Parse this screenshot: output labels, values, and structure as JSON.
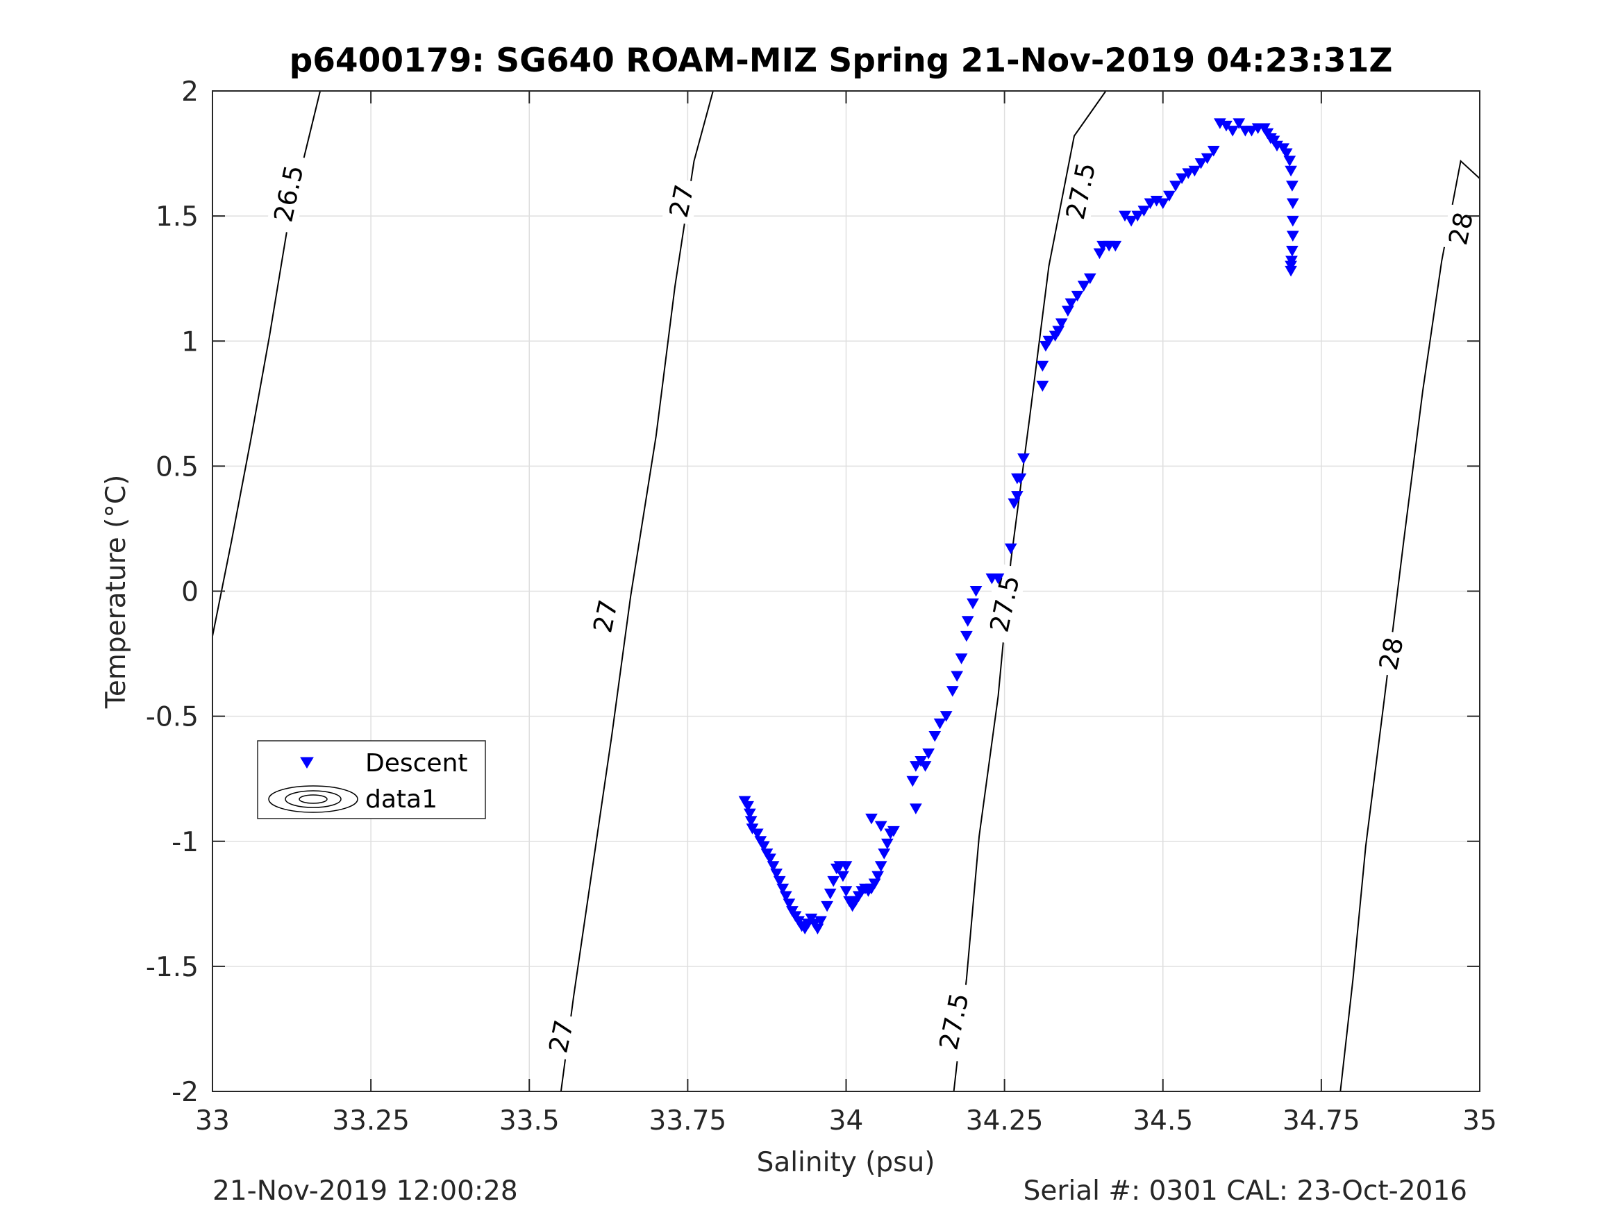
{
  "chart_data": {
    "type": "scatter",
    "title": "p6400179: SG640 ROAM-MIZ Spring 21-Nov-2019 04:23:31Z",
    "xlabel": "Salinity (psu)",
    "ylabel": "Temperature (°C)",
    "xlim": [
      33,
      35
    ],
    "ylim": [
      -2,
      2
    ],
    "xticks": [
      33,
      33.25,
      33.5,
      33.75,
      34,
      34.25,
      34.5,
      34.75,
      35
    ],
    "xtick_labels": [
      "33",
      "33.25",
      "33.5",
      "33.75",
      "34",
      "34.25",
      "34.5",
      "34.75",
      "35"
    ],
    "yticks": [
      -2,
      -1.5,
      -1,
      -0.5,
      0,
      0.5,
      1,
      1.5,
      2
    ],
    "ytick_labels": [
      "-2",
      "-1.5",
      "-1",
      "-0.5",
      "0",
      "0.5",
      "1",
      "1.5",
      "2"
    ],
    "grid": true,
    "legend_position": "middle-left",
    "legend": [
      {
        "label": "Descent",
        "marker": "triangle-down",
        "color": "#0000ff"
      },
      {
        "label": "data1",
        "marker": "contour",
        "color": "#000000"
      }
    ],
    "series": [
      {
        "name": "Descent",
        "color": "#0000ff",
        "marker": "triangle-down",
        "points": [
          [
            33.84,
            -0.84
          ],
          [
            33.845,
            -0.86
          ],
          [
            33.848,
            -0.89
          ],
          [
            33.85,
            -0.92
          ],
          [
            33.852,
            -0.95
          ],
          [
            33.86,
            -0.97
          ],
          [
            33.865,
            -1.0
          ],
          [
            33.87,
            -1.02
          ],
          [
            33.875,
            -1.05
          ],
          [
            33.88,
            -1.07
          ],
          [
            33.885,
            -1.1
          ],
          [
            33.89,
            -1.13
          ],
          [
            33.895,
            -1.16
          ],
          [
            33.9,
            -1.19
          ],
          [
            33.905,
            -1.22
          ],
          [
            33.91,
            -1.25
          ],
          [
            33.915,
            -1.28
          ],
          [
            33.92,
            -1.3
          ],
          [
            33.925,
            -1.32
          ],
          [
            33.93,
            -1.34
          ],
          [
            33.935,
            -1.35
          ],
          [
            33.94,
            -1.33
          ],
          [
            33.945,
            -1.31
          ],
          [
            33.95,
            -1.33
          ],
          [
            33.955,
            -1.35
          ],
          [
            33.96,
            -1.32
          ],
          [
            33.97,
            -1.26
          ],
          [
            33.975,
            -1.21
          ],
          [
            33.98,
            -1.16
          ],
          [
            33.985,
            -1.11
          ],
          [
            33.99,
            -1.1
          ],
          [
            33.995,
            -1.14
          ],
          [
            34.0,
            -1.1
          ],
          [
            34.0,
            -1.2
          ],
          [
            34.005,
            -1.24
          ],
          [
            34.01,
            -1.26
          ],
          [
            34.015,
            -1.24
          ],
          [
            34.02,
            -1.22
          ],
          [
            34.025,
            -1.2
          ],
          [
            34.03,
            -1.19
          ],
          [
            34.035,
            -1.2
          ],
          [
            34.04,
            -1.19
          ],
          [
            34.045,
            -1.17
          ],
          [
            34.05,
            -1.14
          ],
          [
            34.055,
            -1.1
          ],
          [
            34.06,
            -1.05
          ],
          [
            34.065,
            -1.01
          ],
          [
            34.07,
            -0.97
          ],
          [
            34.075,
            -0.96
          ],
          [
            34.055,
            -0.94
          ],
          [
            34.04,
            -0.91
          ],
          [
            34.11,
            -0.87
          ],
          [
            34.105,
            -0.76
          ],
          [
            34.11,
            -0.7
          ],
          [
            34.118,
            -0.68
          ],
          [
            34.125,
            -0.7
          ],
          [
            34.13,
            -0.65
          ],
          [
            34.14,
            -0.58
          ],
          [
            34.148,
            -0.53
          ],
          [
            34.158,
            -0.5
          ],
          [
            34.168,
            -0.4
          ],
          [
            34.175,
            -0.34
          ],
          [
            34.182,
            -0.27
          ],
          [
            34.19,
            -0.18
          ],
          [
            34.192,
            -0.12
          ],
          [
            34.2,
            -0.05
          ],
          [
            34.205,
            0.0
          ],
          [
            34.23,
            0.05
          ],
          [
            34.24,
            0.05
          ],
          [
            34.26,
            0.17
          ],
          [
            34.265,
            0.35
          ],
          [
            34.27,
            0.38
          ],
          [
            34.27,
            0.45
          ],
          [
            34.275,
            0.45
          ],
          [
            34.28,
            0.53
          ],
          [
            34.31,
            0.82
          ],
          [
            34.31,
            0.9
          ],
          [
            34.315,
            0.98
          ],
          [
            34.32,
            1.0
          ],
          [
            34.33,
            1.02
          ],
          [
            34.335,
            1.04
          ],
          [
            34.34,
            1.07
          ],
          [
            34.35,
            1.12
          ],
          [
            34.355,
            1.15
          ],
          [
            34.365,
            1.18
          ],
          [
            34.375,
            1.22
          ],
          [
            34.385,
            1.25
          ],
          [
            34.4,
            1.35
          ],
          [
            34.405,
            1.38
          ],
          [
            34.415,
            1.38
          ],
          [
            34.425,
            1.38
          ],
          [
            34.44,
            1.5
          ],
          [
            34.45,
            1.48
          ],
          [
            34.46,
            1.5
          ],
          [
            34.47,
            1.52
          ],
          [
            34.48,
            1.55
          ],
          [
            34.49,
            1.56
          ],
          [
            34.5,
            1.55
          ],
          [
            34.51,
            1.58
          ],
          [
            34.52,
            1.62
          ],
          [
            34.53,
            1.65
          ],
          [
            34.54,
            1.67
          ],
          [
            34.55,
            1.68
          ],
          [
            34.56,
            1.71
          ],
          [
            34.57,
            1.73
          ],
          [
            34.58,
            1.76
          ],
          [
            34.59,
            1.87
          ],
          [
            34.6,
            1.86
          ],
          [
            34.61,
            1.84
          ],
          [
            34.62,
            1.87
          ],
          [
            34.63,
            1.84
          ],
          [
            34.64,
            1.84
          ],
          [
            34.65,
            1.85
          ],
          [
            34.66,
            1.85
          ],
          [
            34.665,
            1.83
          ],
          [
            34.67,
            1.81
          ],
          [
            34.675,
            1.8
          ],
          [
            34.68,
            1.78
          ],
          [
            34.69,
            1.77
          ],
          [
            34.695,
            1.75
          ],
          [
            34.7,
            1.72
          ],
          [
            34.702,
            1.68
          ],
          [
            34.704,
            1.62
          ],
          [
            34.705,
            1.55
          ],
          [
            34.705,
            1.48
          ],
          [
            34.705,
            1.42
          ],
          [
            34.704,
            1.36
          ],
          [
            34.703,
            1.32
          ],
          [
            34.702,
            1.3
          ],
          [
            34.702,
            1.28
          ]
        ]
      }
    ],
    "isopycnals": [
      {
        "label": "26.5",
        "points": [
          [
            33.0,
            -0.18
          ],
          [
            33.03,
            0.2
          ],
          [
            33.06,
            0.6
          ],
          [
            33.09,
            1.02
          ],
          [
            33.12,
            1.48
          ],
          [
            33.17,
            2.0
          ]
        ]
      },
      {
        "label": "27",
        "points": [
          [
            33.55,
            -2.0
          ],
          [
            33.57,
            -1.62
          ],
          [
            33.6,
            -1.1
          ],
          [
            33.63,
            -0.58
          ],
          [
            33.66,
            -0.02
          ],
          [
            33.7,
            0.62
          ],
          [
            33.73,
            1.22
          ],
          [
            33.76,
            1.72
          ],
          [
            33.79,
            2.0
          ]
        ]
      },
      {
        "label": "27.5",
        "points": [
          [
            34.17,
            -2.0
          ],
          [
            34.19,
            -1.55
          ],
          [
            34.21,
            -0.98
          ],
          [
            34.24,
            -0.42
          ],
          [
            34.26,
            0.12
          ],
          [
            34.29,
            0.7
          ],
          [
            34.32,
            1.3
          ],
          [
            34.36,
            1.82
          ],
          [
            34.41,
            2.0
          ]
        ]
      },
      {
        "label": "28",
        "points": [
          [
            34.78,
            -2.0
          ],
          [
            34.8,
            -1.55
          ],
          [
            34.82,
            -1.02
          ],
          [
            34.85,
            -0.42
          ],
          [
            34.88,
            0.2
          ],
          [
            34.91,
            0.8
          ],
          [
            34.94,
            1.32
          ],
          [
            34.97,
            1.72
          ],
          [
            35.0,
            1.65
          ]
        ]
      }
    ],
    "contour_labels": [
      {
        "text": "26.5",
        "x": 33.12,
        "y": 1.59
      },
      {
        "text": "27",
        "x": 33.74,
        "y": 1.56
      },
      {
        "text": "27",
        "x": 33.62,
        "y": -0.1
      },
      {
        "text": "27",
        "x": 33.55,
        "y": -1.78
      },
      {
        "text": "27.5",
        "x": 34.37,
        "y": 1.6
      },
      {
        "text": "27.5",
        "x": 34.25,
        "y": -0.05
      },
      {
        "text": "27.5",
        "x": 34.17,
        "y": -1.72
      },
      {
        "text": "28",
        "x": 34.97,
        "y": 1.45
      },
      {
        "text": "28",
        "x": 34.86,
        "y": -0.25
      }
    ]
  },
  "footer": {
    "left": "21-Nov-2019 12:00:28",
    "right": "Serial #: 0301  CAL: 23-Oct-2016"
  }
}
